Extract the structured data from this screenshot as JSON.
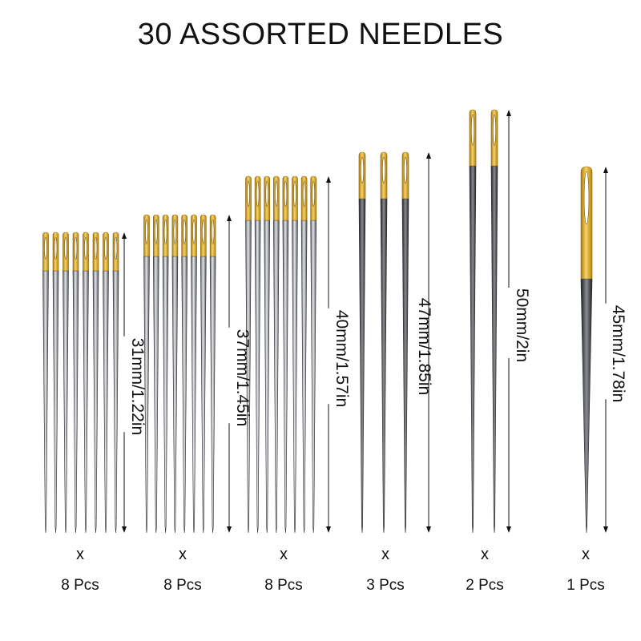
{
  "title": "30 ASSORTED NEEDLES",
  "multiply_symbol": "x",
  "groups": [
    {
      "label": "31mm/1.22in",
      "count": 8,
      "qty": "8 Pcs"
    },
    {
      "label": "37mm/1.45in",
      "count": 8,
      "qty": "8 Pcs"
    },
    {
      "label": "40mm/1.57in",
      "count": 8,
      "qty": "8 Pcs"
    },
    {
      "label": "47mm/1.85in",
      "count": 3,
      "qty": "3 Pcs"
    },
    {
      "label": "50mm/2in",
      "count": 2,
      "qty": "2 Pcs"
    },
    {
      "label": "45mm/1.78in",
      "count": 1,
      "qty": "1 Pcs"
    }
  ],
  "colors": {
    "gold": "#d9a21c",
    "gold_light": "#f3cf5a",
    "steel": "#9a9ea3",
    "steel_dark": "#3a3c40",
    "text": "#111111"
  }
}
